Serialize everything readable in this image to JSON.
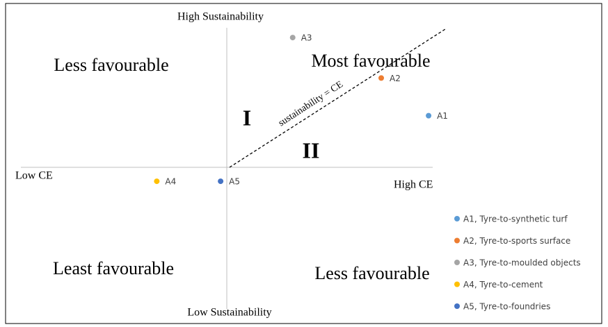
{
  "chart_data": {
    "type": "scatter",
    "annotations": {
      "top_axis": "High Sustainability",
      "bottom_axis": "Low Sustainability",
      "left_axis": "Low CE",
      "right_axis": "High CE",
      "top_left": "Less favourable",
      "top_right": "Most favourable",
      "bottom_left": "Least favourable",
      "bottom_right": "Less favourable",
      "zone_1": "I",
      "zone_2": "II",
      "diagonal": "sustainability = CE"
    },
    "xlim": [
      -1,
      1
    ],
    "ylim": [
      -1,
      1
    ],
    "series": [
      {
        "name": "A1, Tyre-to-synthetic turf",
        "point_label": "A1",
        "color": "#5b9bd5",
        "x": [
          0.98
        ],
        "values": [
          0.37
        ]
      },
      {
        "name": "A2, Tyre-to-sports surface",
        "point_label": "A2",
        "color": "#ed7d31",
        "x": [
          0.75
        ],
        "values": [
          0.64
        ]
      },
      {
        "name": "A3, Tyre-to-moulded objects",
        "point_label": "A3",
        "color": "#a5a5a5",
        "x": [
          0.32
        ],
        "values": [
          0.93
        ]
      },
      {
        "name": "A4, Tyre-to-cement",
        "point_label": "A4",
        "color": "#ffc000",
        "x": [
          -0.34
        ],
        "values": [
          -0.1
        ]
      },
      {
        "name": "A5, Tyre-to-foundries",
        "point_label": "A5",
        "color": "#4472c4",
        "x": [
          -0.03
        ],
        "values": [
          -0.1
        ]
      }
    ]
  }
}
